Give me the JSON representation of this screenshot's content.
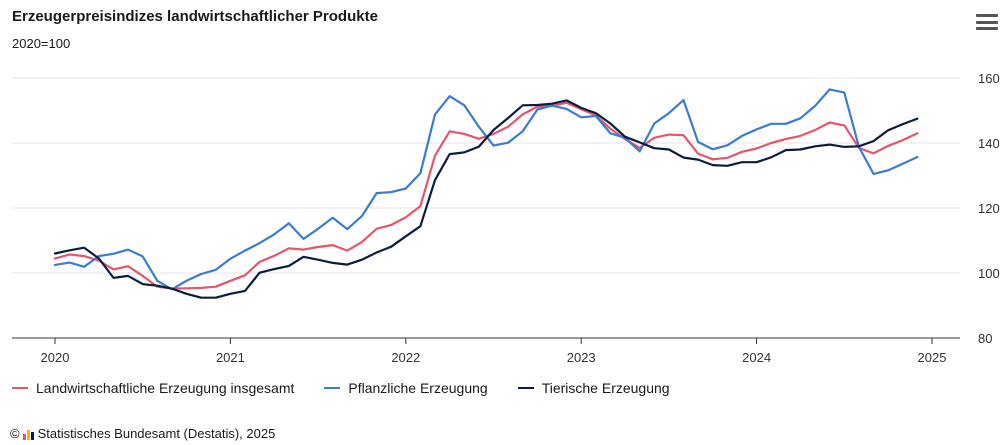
{
  "header": {
    "title": "Erzeugerpreisindizes landwirtschaftlicher Produkte",
    "subtitle": "2020=100",
    "menu_icon": "hamburger-menu-icon"
  },
  "footer": {
    "copyright_symbol": "©",
    "logo_icon": "destatis-logo-icon",
    "source_text": "Statistisches Bundesamt (Destatis), 2025"
  },
  "colors": {
    "series_total": "#e5566b",
    "series_plant": "#3a7bd5",
    "series_animal": "#0b1d3f",
    "grid": "#e6e6e6",
    "axis": "#333333"
  },
  "chart_data": {
    "type": "line",
    "title": "Erzeugerpreisindizes landwirtschaftlicher Produkte",
    "subtitle": "2020=100",
    "x_start": "2020-01",
    "x_interval": "month",
    "x_ticks": [
      "2020",
      "2021",
      "2022",
      "2023",
      "2024",
      "2025"
    ],
    "y_ticks": [
      "80",
      "100",
      "120",
      "140",
      "160"
    ],
    "ylim": [
      80,
      160
    ],
    "grid": true,
    "legend_position": "bottom",
    "series": [
      {
        "name": "Landwirtschaftliche Erzeugung insgesamt",
        "color": "#e5566b",
        "values": [
          104.5,
          105.7,
          105.2,
          103.8,
          101.1,
          102.1,
          99.1,
          95.8,
          95.2,
          95.3,
          95.4,
          95.8,
          97.6,
          99.3,
          103.4,
          105.3,
          107.6,
          107.2,
          108.0,
          108.6,
          106.9,
          109.5,
          113.6,
          114.8,
          117.1,
          120.6,
          136.1,
          143.6,
          142.8,
          141.3,
          142.8,
          145.0,
          148.8,
          151.2,
          151.4,
          152.4,
          150.4,
          148.5,
          144.4,
          141.2,
          138.5,
          141.6,
          142.6,
          142.4,
          136.7,
          135.0,
          135.4,
          137.3,
          138.3,
          140.0,
          141.2,
          142.2,
          144.0,
          146.3,
          145.4,
          138.5,
          136.8,
          139.1,
          140.9,
          143.0
        ]
      },
      {
        "name": "Pflanzliche Erzeugung",
        "color": "#3a7bd5",
        "values": [
          102.5,
          103.2,
          101.9,
          105.2,
          105.9,
          107.2,
          105.1,
          97.6,
          95.0,
          97.6,
          99.7,
          101.0,
          104.4,
          106.9,
          109.2,
          111.9,
          115.3,
          110.5,
          113.6,
          117.0,
          113.5,
          117.5,
          124.6,
          124.9,
          126.0,
          130.7,
          148.8,
          154.4,
          151.6,
          145.0,
          139.2,
          140.1,
          143.6,
          150.3,
          151.5,
          150.5,
          147.9,
          148.3,
          143.0,
          141.6,
          137.4,
          146.0,
          149.2,
          153.2,
          140.3,
          138.1,
          139.3,
          142.2,
          144.2,
          145.9,
          145.9,
          147.6,
          151.4,
          156.5,
          155.5,
          138.8,
          130.5,
          131.6,
          133.6,
          135.7
        ]
      },
      {
        "name": "Tierische Erzeugung",
        "color": "#0b1d3f",
        "values": [
          106.0,
          107.0,
          107.8,
          104.5,
          98.5,
          99.1,
          96.6,
          96.1,
          95.2,
          93.6,
          92.4,
          92.4,
          93.6,
          94.5,
          100.1,
          101.2,
          102.2,
          105.0,
          104.1,
          103.1,
          102.6,
          104.1,
          106.3,
          108.1,
          111.3,
          114.4,
          128.6,
          136.6,
          137.1,
          138.9,
          144.0,
          147.7,
          151.6,
          151.7,
          152.1,
          153.1,
          150.8,
          149.2,
          146.0,
          141.9,
          140.2,
          138.4,
          138.0,
          135.5,
          134.9,
          133.2,
          133.0,
          134.1,
          134.1,
          135.6,
          137.8,
          138.0,
          139.0,
          139.5,
          138.8,
          139.0,
          140.6,
          143.9,
          145.8,
          147.5
        ]
      }
    ]
  }
}
